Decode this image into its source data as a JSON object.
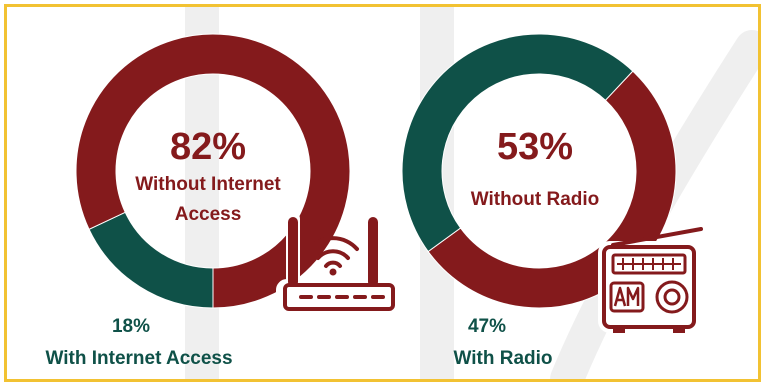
{
  "colors": {
    "maroon": "#841a1c",
    "teal": "#0f5148",
    "frame": "#f2c232",
    "watermark": "#efefef"
  },
  "chart_data": [
    {
      "type": "pie",
      "variant": "donut",
      "slices": [
        {
          "label": "Without Internet Access",
          "value": 82,
          "color": "#841a1c"
        },
        {
          "label": "With Internet Access",
          "value": 18,
          "color": "#0f5148"
        }
      ],
      "center": {
        "value": "82%",
        "line1": "Without Internet",
        "line2": "Access"
      },
      "outside": {
        "value": "18%",
        "label": "With Internet Access"
      },
      "icon": "wifi-router-icon"
    },
    {
      "type": "pie",
      "variant": "donut",
      "slices": [
        {
          "label": "Without Radio",
          "value": 53,
          "color": "#841a1c"
        },
        {
          "label": "With Radio",
          "value": 47,
          "color": "#0f5148"
        }
      ],
      "center": {
        "value": "53%",
        "line1": "Without Radio"
      },
      "outside": {
        "value": "47%",
        "label": "With Radio"
      },
      "icon": "am-radio-icon"
    }
  ]
}
